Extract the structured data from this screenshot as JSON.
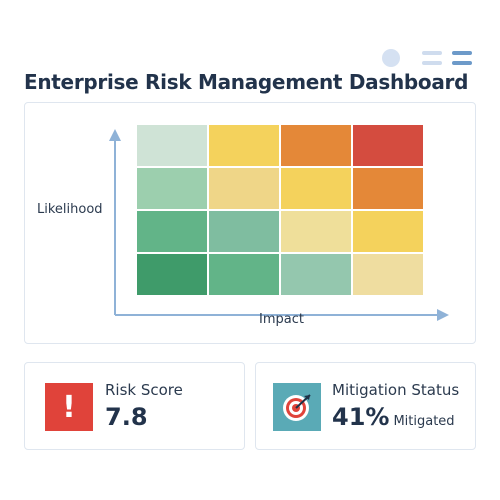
{
  "header": {
    "title": "Enterprise Risk Management Dashboard",
    "icons": [
      "avatar-dot",
      "menu-icon",
      "menu-icon"
    ]
  },
  "heatmap": {
    "y_label": "Likelihood",
    "x_label": "Impact",
    "rows": [
      [
        "#cfe3d6",
        "#f4d25c",
        "#e48838",
        "#d44c3f"
      ],
      [
        "#9ccfae",
        "#efd688",
        "#f4d25c",
        "#e48838"
      ],
      [
        "#62b488",
        "#7fbda0",
        "#efdf9a",
        "#f4d25c"
      ],
      [
        "#3f9b6a",
        "#62b488",
        "#94c7ae",
        "#efdda0"
      ]
    ]
  },
  "risk_score": {
    "label": "Risk Score",
    "value": "7.8",
    "icon": "exclamation-icon",
    "icon_glyph": "!",
    "color": "#e0433a"
  },
  "mitigation": {
    "label": "Mitigation Status",
    "value": "41%",
    "sub": "Mitigated",
    "icon": "target-icon",
    "color": "#5aaab6"
  }
}
